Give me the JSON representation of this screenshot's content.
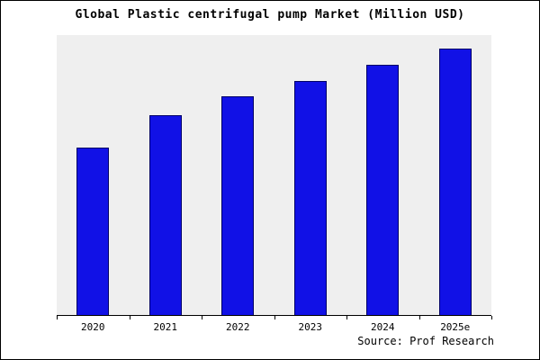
{
  "title": "Global Plastic centrifugal pump Market (Million USD)",
  "source": "Source: Prof Research",
  "chart_data": {
    "type": "bar",
    "title": "Global Plastic centrifugal pump Market (Million USD)",
    "categories": [
      "2020",
      "2021",
      "2022",
      "2023",
      "2024",
      "2025e"
    ],
    "values": [
      63,
      75,
      82,
      88,
      94,
      100
    ],
    "xlabel": "",
    "ylabel": "",
    "ylim": [
      0,
      105
    ],
    "grid": false,
    "legend_position": "none",
    "bar_color": "#1111e6",
    "bar_border_color": "#000066",
    "plot_background": "#efefef",
    "page_background": "#ffffff",
    "axis_color": "#000000",
    "source_note": "Source: Prof Research"
  }
}
